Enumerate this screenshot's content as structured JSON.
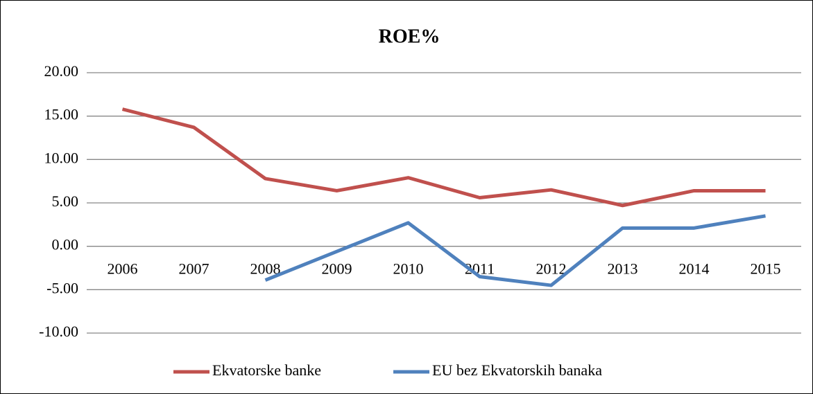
{
  "chart_data": {
    "type": "line",
    "title": "ROE%",
    "categories": [
      "2006",
      "2007",
      "2008",
      "2009",
      "2010",
      "2011",
      "2012",
      "2013",
      "2014",
      "2015"
    ],
    "series": [
      {
        "name": "Ekvatorske banke",
        "color": "#c0504d",
        "values": [
          15.8,
          13.7,
          7.8,
          6.4,
          7.9,
          5.6,
          6.5,
          4.7,
          6.4,
          6.4
        ]
      },
      {
        "name": "EU bez Ekvatorskih banaka",
        "color": "#4f81bd",
        "values": [
          null,
          null,
          -3.9,
          -0.6,
          2.7,
          -3.5,
          -4.5,
          2.1,
          2.1,
          3.5
        ]
      }
    ],
    "ylim": [
      -10,
      20
    ],
    "yticks": [
      {
        "value": -10,
        "label": "-10.00"
      },
      {
        "value": -5,
        "label": "-5.00"
      },
      {
        "value": 0,
        "label": "0.00"
      },
      {
        "value": 5,
        "label": "5.00"
      },
      {
        "value": 10,
        "label": "10.00"
      },
      {
        "value": 15,
        "label": "15.00"
      },
      {
        "value": 20,
        "label": "20.00"
      }
    ],
    "grid": true,
    "legend": "bottom"
  }
}
